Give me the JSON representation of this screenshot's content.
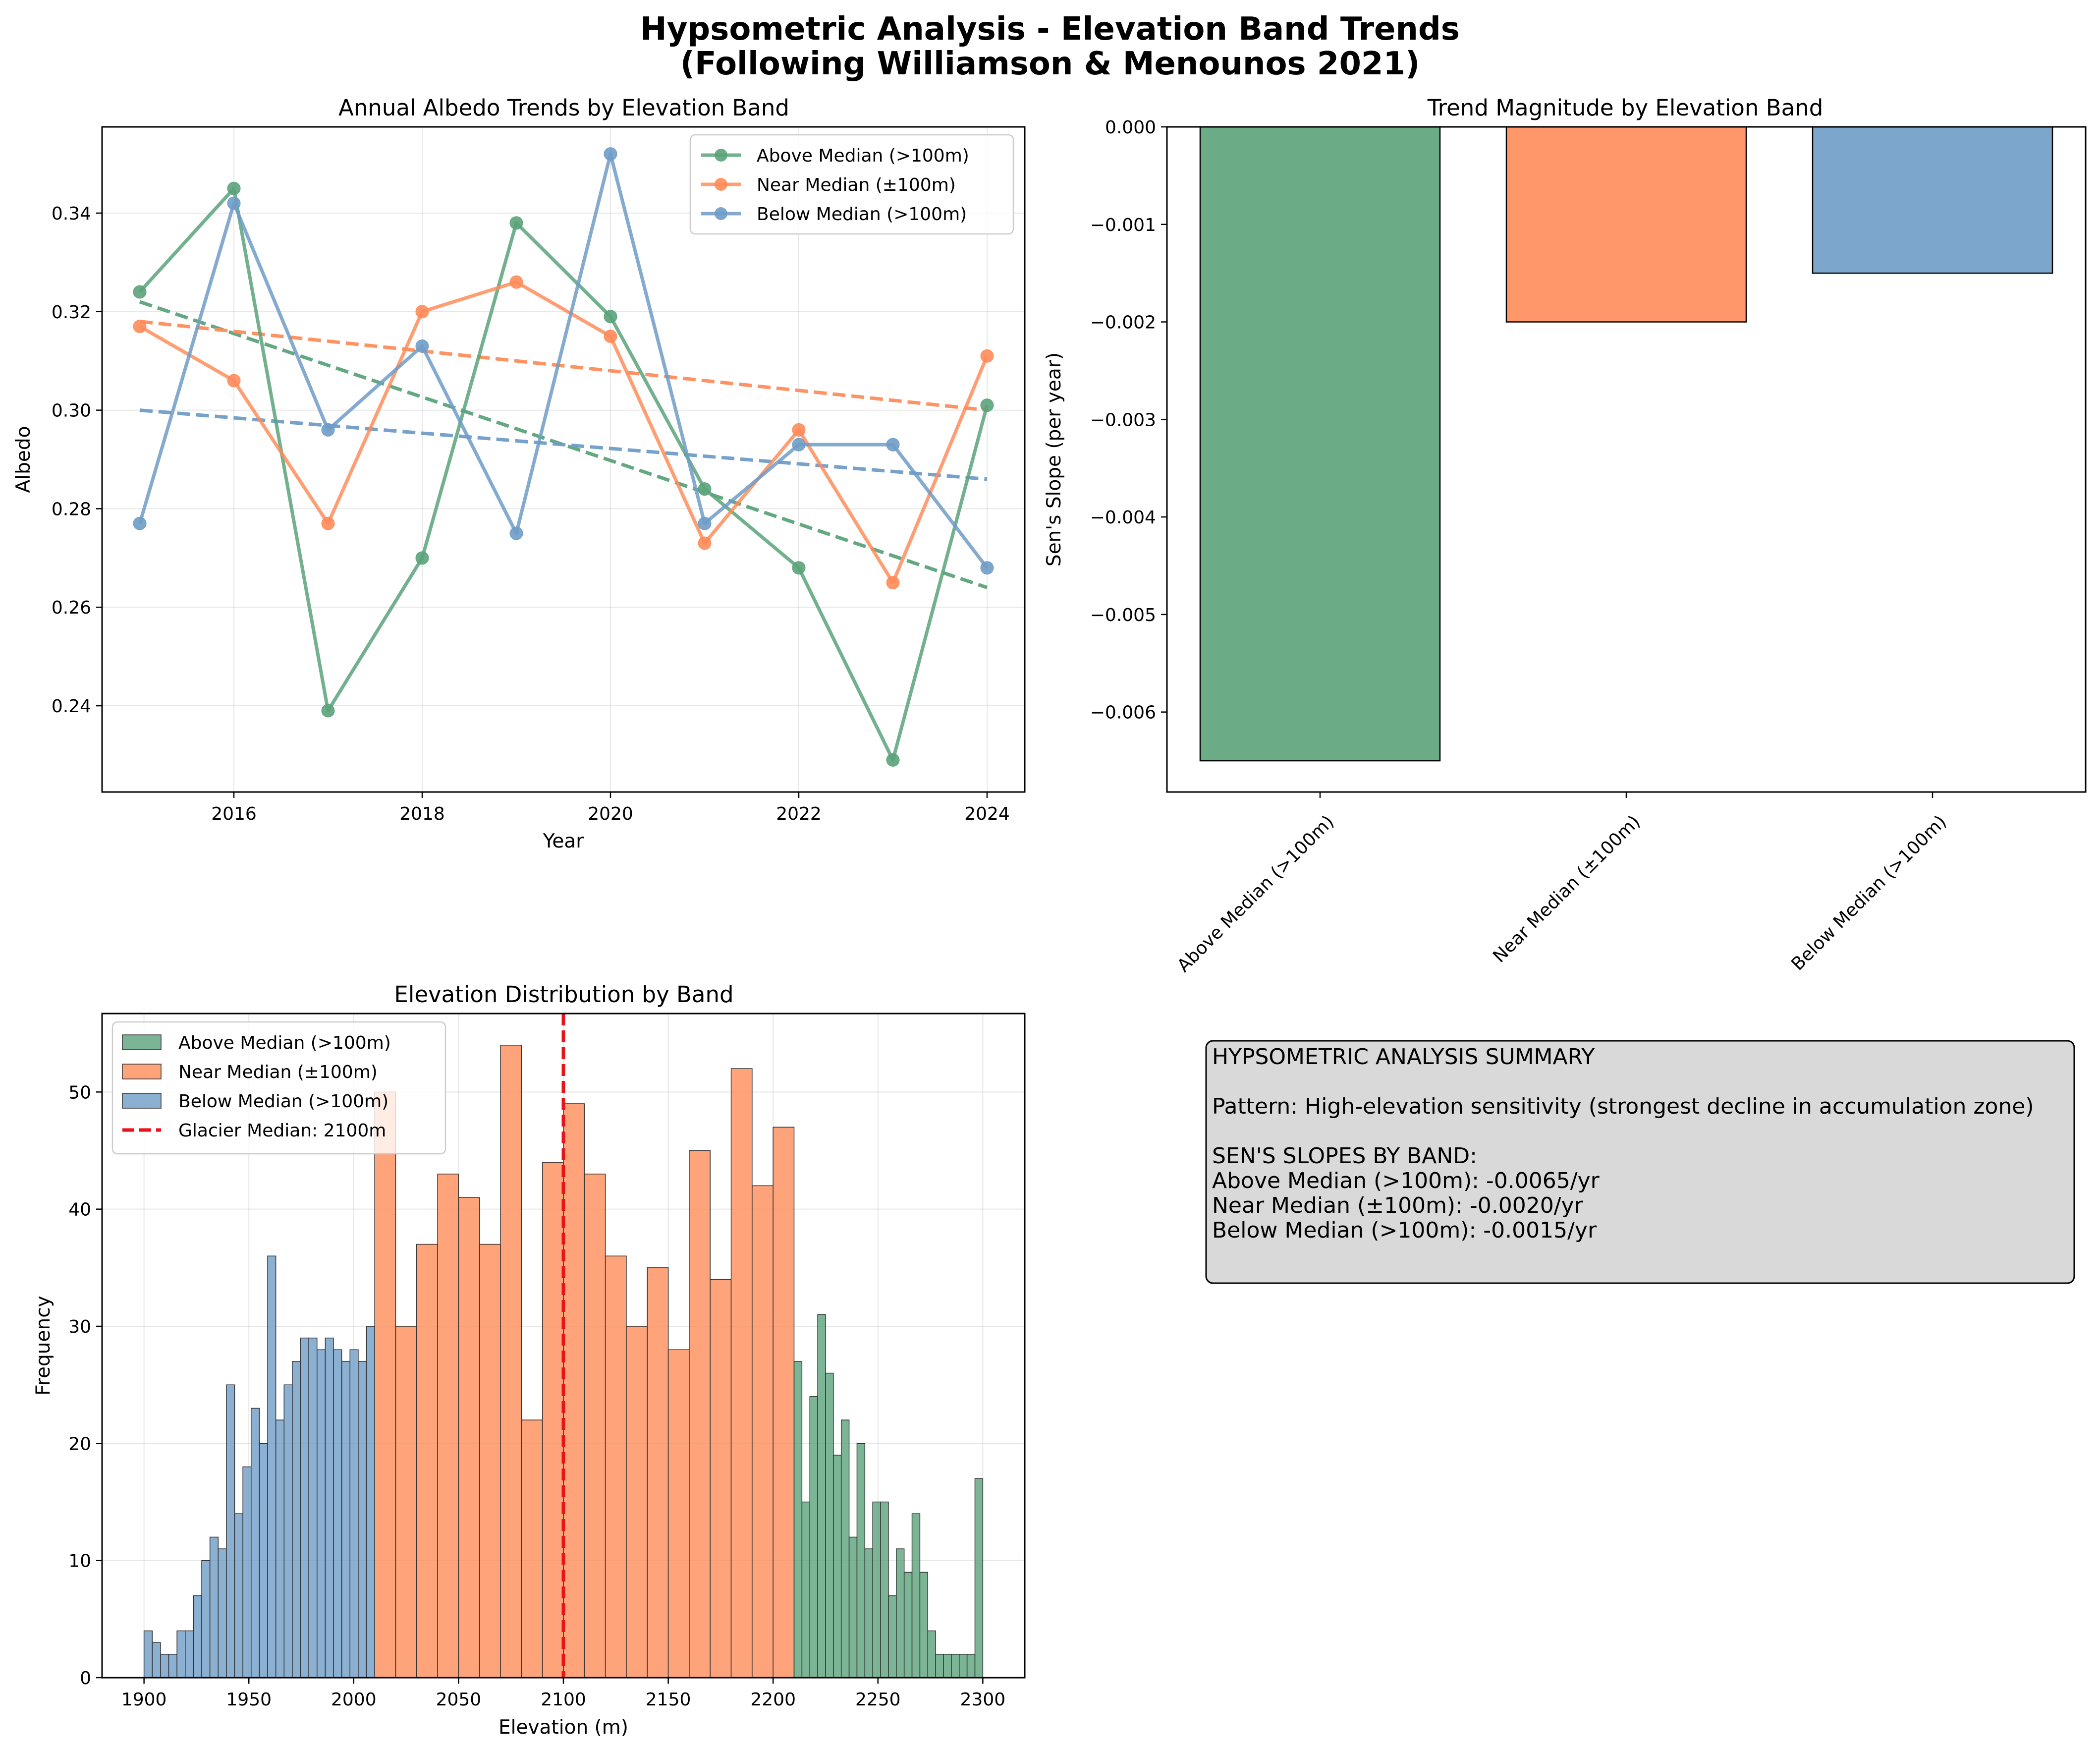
{
  "figure": {
    "title_line1": "Hypsometric Analysis - Elevation Band Trends",
    "title_line2": "(Following Williamson & Menounos 2021)"
  },
  "colors": {
    "above": "#5ba37a",
    "near": "#ff8c5a",
    "below": "#6f9cc7",
    "median_line": "#e8141c",
    "summary_bg": "#d9d9d9"
  },
  "chart_data": [
    {
      "id": "albedo_trends",
      "type": "line",
      "title": "Annual Albedo Trends by Elevation Band",
      "xlabel": "Year",
      "ylabel": "Albedo",
      "xlim": [
        2014.6,
        2024.4
      ],
      "ylim": [
        0.2225,
        0.3575
      ],
      "xticks": [
        2016,
        2018,
        2020,
        2022,
        2024
      ],
      "yticks": [
        0.24,
        0.26,
        0.28,
        0.3,
        0.32,
        0.34
      ],
      "grid": true,
      "legend_position": "top-right",
      "x": [
        2015,
        2016,
        2017,
        2018,
        2019,
        2020,
        2021,
        2022,
        2023,
        2024
      ],
      "series": [
        {
          "name": "Above Median (>100m)",
          "key": "above",
          "values": [
            0.324,
            0.345,
            0.239,
            0.27,
            0.338,
            0.319,
            0.284,
            0.268,
            0.229,
            0.301
          ],
          "trend": [
            0.322,
            0.264
          ]
        },
        {
          "name": "Near Median (±100m)",
          "key": "near",
          "values": [
            0.317,
            0.306,
            0.277,
            0.32,
            0.326,
            0.315,
            0.273,
            0.296,
            0.265,
            0.311
          ],
          "trend": [
            0.318,
            0.3
          ]
        },
        {
          "name": "Below Median (>100m)",
          "key": "below",
          "values": [
            0.277,
            0.342,
            0.296,
            0.313,
            0.275,
            0.352,
            0.277,
            0.293,
            0.293,
            0.268
          ],
          "trend": [
            0.3,
            0.286
          ]
        }
      ]
    },
    {
      "id": "trend_magnitude",
      "type": "bar",
      "title": "Trend Magnitude by Elevation Band",
      "xlabel": "",
      "ylabel": "Sen's Slope (per year)",
      "ylim": [
        -0.00682,
        0.0
      ],
      "yticks": [
        0.0,
        -0.001,
        -0.002,
        -0.003,
        -0.004,
        -0.005,
        -0.006
      ],
      "ytick_labels": [
        "0.000",
        "−0.001",
        "−0.002",
        "−0.003",
        "−0.004",
        "−0.005",
        "−0.006"
      ],
      "categories": [
        "Above Median (>100m)",
        "Near Median (±100m)",
        "Below Median (>100m)"
      ],
      "keys": [
        "above",
        "near",
        "below"
      ],
      "values": [
        -0.0065,
        -0.002,
        -0.0015
      ]
    },
    {
      "id": "elevation_hist",
      "type": "bar",
      "title": "Elevation Distribution by Band",
      "xlabel": "Elevation (m)",
      "ylabel": "Frequency",
      "xlim": [
        1880,
        2320
      ],
      "ylim": [
        0,
        56.7
      ],
      "xticks": [
        1900,
        1950,
        2000,
        2050,
        2100,
        2150,
        2200,
        2250,
        2300
      ],
      "yticks": [
        0,
        10,
        20,
        30,
        40,
        50
      ],
      "grid": true,
      "legend_position": "top-left",
      "median": {
        "value": 2100,
        "label": "Glacier Median: 2100m"
      },
      "series": [
        {
          "name": "Below Median (>100m)",
          "key": "below",
          "range": [
            1900,
            2010
          ],
          "bin_width": 3.9286,
          "counts": [
            4,
            3,
            2,
            2,
            4,
            4,
            7,
            10,
            12,
            11,
            25,
            14,
            18,
            23,
            20,
            36,
            22,
            25,
            27,
            29,
            29,
            28,
            29,
            28,
            27,
            28,
            27,
            30
          ]
        },
        {
          "name": "Near Median (±100m)",
          "key": "near",
          "range": [
            2010,
            2210
          ],
          "bin_width": 10,
          "counts": [
            50,
            30,
            37,
            43,
            41,
            37,
            54,
            22,
            44,
            49,
            43,
            36,
            30,
            35,
            28,
            45,
            34,
            52,
            42,
            47
          ]
        },
        {
          "name": "Above Median (>100m)",
          "key": "above",
          "range": [
            2210,
            2300
          ],
          "bin_width": 3.75,
          "counts": [
            27,
            15,
            24,
            31,
            26,
            19,
            22,
            12,
            20,
            11,
            15,
            15,
            7,
            11,
            9,
            14,
            9,
            4,
            2,
            2,
            2,
            2,
            2,
            17
          ]
        }
      ]
    }
  ],
  "summary": {
    "lines": [
      "HYPSOMETRIC ANALYSIS SUMMARY",
      "",
      "Pattern: High-elevation sensitivity (strongest decline in accumulation zone)",
      "",
      "SEN'S SLOPES BY BAND:",
      "Above Median (>100m): -0.0065/yr",
      "Near Median (±100m): -0.0020/yr",
      "Below Median (>100m): -0.0015/yr"
    ]
  }
}
